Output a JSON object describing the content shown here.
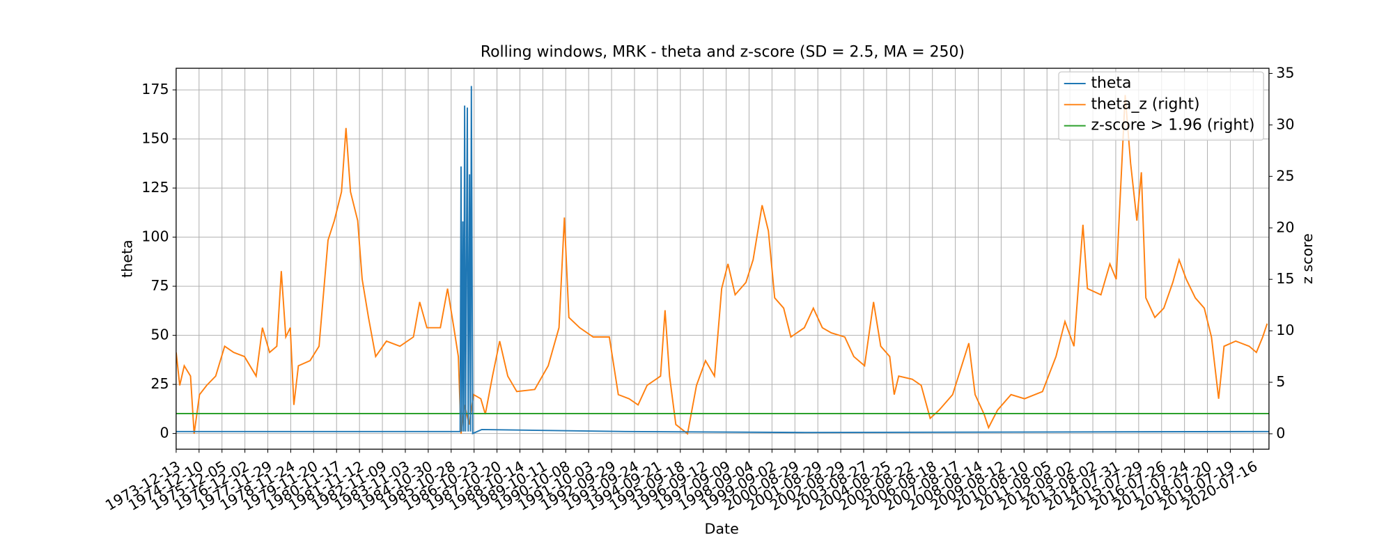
{
  "chart_data": {
    "type": "line",
    "title": "Rolling windows, MRK - theta and z-score (SD = 2.5, MA = 250)",
    "x_label": "Date",
    "y_label": "theta",
    "y2_label": "z score",
    "grid": true,
    "legend": "upper right",
    "xlim": [
      0,
      12160
    ],
    "ylim": [
      -8,
      186
    ],
    "y2lim": [
      -1.5,
      35.5
    ],
    "yticks": [
      0,
      25,
      50,
      75,
      100,
      125,
      150,
      175
    ],
    "y2ticks": [
      0,
      5,
      10,
      15,
      20,
      25,
      30,
      35
    ],
    "xticks": [
      {
        "value": 0,
        "label": "1973-12-13"
      },
      {
        "value": 255,
        "label": "1974-12-10"
      },
      {
        "value": 510,
        "label": "1975-12-05"
      },
      {
        "value": 765,
        "label": "1976-12-02"
      },
      {
        "value": 1020,
        "label": "1977-11-29"
      },
      {
        "value": 1275,
        "label": "1978-11-24"
      },
      {
        "value": 1530,
        "label": "1979-11-20"
      },
      {
        "value": 1785,
        "label": "1980-11-17"
      },
      {
        "value": 2040,
        "label": "1981-11-12"
      },
      {
        "value": 2295,
        "label": "1982-11-09"
      },
      {
        "value": 2550,
        "label": "1983-11-03"
      },
      {
        "value": 2805,
        "label": "1984-10-30"
      },
      {
        "value": 3060,
        "label": "1985-10-28"
      },
      {
        "value": 3315,
        "label": "1986-10-23"
      },
      {
        "value": 3570,
        "label": "1987-10-20"
      },
      {
        "value": 3825,
        "label": "1988-10-14"
      },
      {
        "value": 4080,
        "label": "1989-10-11"
      },
      {
        "value": 4335,
        "label": "1990-10-08"
      },
      {
        "value": 4590,
        "label": "1991-10-03"
      },
      {
        "value": 4845,
        "label": "1992-09-29"
      },
      {
        "value": 5100,
        "label": "1993-09-24"
      },
      {
        "value": 5355,
        "label": "1994-09-21"
      },
      {
        "value": 5610,
        "label": "1995-09-18"
      },
      {
        "value": 5865,
        "label": "1996-09-12"
      },
      {
        "value": 6120,
        "label": "1997-09-09"
      },
      {
        "value": 6375,
        "label": "1998-09-04"
      },
      {
        "value": 6630,
        "label": "1999-09-02"
      },
      {
        "value": 6885,
        "label": "2000-08-29"
      },
      {
        "value": 7140,
        "label": "2001-08-29"
      },
      {
        "value": 7395,
        "label": "2002-08-29"
      },
      {
        "value": 7650,
        "label": "2003-08-27"
      },
      {
        "value": 7905,
        "label": "2004-08-25"
      },
      {
        "value": 8160,
        "label": "2005-08-22"
      },
      {
        "value": 8415,
        "label": "2006-08-18"
      },
      {
        "value": 8670,
        "label": "2007-08-17"
      },
      {
        "value": 8925,
        "label": "2008-08-14"
      },
      {
        "value": 9180,
        "label": "2009-08-12"
      },
      {
        "value": 9435,
        "label": "2010-08-10"
      },
      {
        "value": 9690,
        "label": "2011-08-05"
      },
      {
        "value": 9945,
        "label": "2012-08-02"
      },
      {
        "value": 10200,
        "label": "2013-08-02"
      },
      {
        "value": 10455,
        "label": "2014-07-31"
      },
      {
        "value": 10710,
        "label": "2015-07-29"
      },
      {
        "value": 10965,
        "label": "2016-07-26"
      },
      {
        "value": 11220,
        "label": "2017-07-24"
      },
      {
        "value": 11475,
        "label": "2018-07-20"
      },
      {
        "value": 11730,
        "label": "2019-07-19"
      },
      {
        "value": 11985,
        "label": "2020-07-16"
      }
    ],
    "series": [
      {
        "name": "theta",
        "color": "#1f77b4",
        "axis": "y",
        "x": [
          0,
          3160,
          3170,
          3180,
          3190,
          3200,
          3210,
          3220,
          3240,
          3250,
          3265,
          3275,
          3285,
          3300,
          3400,
          5000,
          7000,
          12160
        ],
        "values": [
          1,
          1,
          136,
          1,
          108,
          1,
          167,
          1,
          166,
          1,
          132,
          1,
          177,
          0,
          2,
          1,
          0.5,
          1
        ]
      },
      {
        "name": "theta_z (right)",
        "color": "#ff7f0e",
        "axis": "y2",
        "x": [
          0,
          40,
          90,
          160,
          200,
          260,
          340,
          440,
          540,
          640,
          760,
          890,
          960,
          1040,
          1120,
          1170,
          1220,
          1270,
          1310,
          1360,
          1490,
          1590,
          1690,
          1760,
          1840,
          1890,
          1940,
          2020,
          2070,
          2140,
          2220,
          2340,
          2490,
          2640,
          2710,
          2790,
          2940,
          3020,
          3090,
          3140,
          3170,
          3210,
          3260,
          3310,
          3390,
          3440,
          3520,
          3600,
          3690,
          3790,
          3990,
          4140,
          4260,
          4320,
          4370,
          4490,
          4640,
          4820,
          4920,
          5040,
          5140,
          5240,
          5390,
          5440,
          5490,
          5560,
          5690,
          5790,
          5890,
          5990,
          6070,
          6140,
          6220,
          6340,
          6420,
          6520,
          6590,
          6660,
          6760,
          6840,
          6990,
          7090,
          7190,
          7290,
          7440,
          7540,
          7660,
          7760,
          7840,
          7940,
          7990,
          8040,
          8190,
          8290,
          8390,
          8490,
          8640,
          8820,
          8890,
          8990,
          9040,
          9140,
          9290,
          9440,
          9640,
          9790,
          9890,
          9990,
          10090,
          10140,
          10290,
          10390,
          10460,
          10560,
          10620,
          10690,
          10740,
          10790,
          10890,
          10990,
          11090,
          11160,
          11240,
          11340,
          11440,
          11520,
          11600,
          11660,
          11790,
          11940,
          12020,
          12090,
          12140
        ],
        "values": [
          7.9,
          4.7,
          6.6,
          5.6,
          0,
          3.8,
          4.7,
          5.6,
          8.5,
          7.9,
          7.5,
          5.6,
          10.3,
          7.9,
          8.5,
          15.8,
          9.4,
          10.3,
          2.8,
          6.6,
          7.1,
          8.5,
          18.8,
          20.7,
          23.5,
          29.7,
          23.5,
          20.7,
          15,
          11.3,
          7.5,
          9,
          8.5,
          9.4,
          12.8,
          10.3,
          10.3,
          14.1,
          10.3,
          7.5,
          0,
          2.8,
          0.9,
          3.8,
          3.4,
          1.9,
          5.6,
          9,
          5.6,
          4.1,
          4.3,
          6.6,
          10.3,
          21,
          11.3,
          10.3,
          9.4,
          9.4,
          3.8,
          3.4,
          2.8,
          4.7,
          5.6,
          12,
          5.6,
          0.9,
          0,
          4.7,
          7.1,
          5.6,
          14.1,
          16.5,
          13.5,
          14.7,
          16.9,
          22.2,
          19.7,
          13.2,
          12.2,
          9.4,
          10.3,
          12.2,
          10.3,
          9.8,
          9.4,
          7.5,
          6.6,
          12.8,
          8.5,
          7.5,
          3.8,
          5.6,
          5.3,
          4.7,
          1.5,
          2.3,
          3.8,
          8.8,
          3.8,
          1.9,
          0.6,
          2.3,
          3.8,
          3.4,
          4.1,
          7.5,
          10.9,
          8.5,
          20.3,
          14.1,
          13.5,
          16.5,
          15,
          32.9,
          26.3,
          20.7,
          25.4,
          13.2,
          11.3,
          12.2,
          14.7,
          16.9,
          15,
          13.2,
          12.2,
          9.4,
          3.4,
          8.5,
          9,
          8.5,
          7.9,
          9.4,
          10.7
        ]
      },
      {
        "name": "z-score > 1.96 (right)",
        "color": "#2ca02c",
        "axis": "y2",
        "x": [
          0,
          12160
        ],
        "values": [
          1.96,
          1.96
        ]
      }
    ]
  }
}
